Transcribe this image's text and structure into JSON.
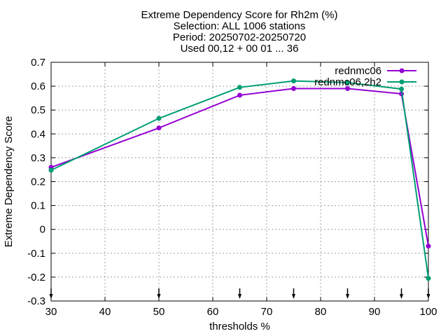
{
  "chart_data": {
    "type": "line",
    "title_lines": [
      "Extreme Dependency Score  for Rh2m (%)",
      "Selection: ALL   1006 stations",
      "Period: 20250702-20250720",
      "Used 00,12 + 00 01 ... 36"
    ],
    "xlabel": "thresholds %",
    "ylabel": "Extreme Dependency Score",
    "xlim": [
      30,
      100
    ],
    "ylim": [
      -0.3,
      0.7
    ],
    "xticks": [
      30,
      40,
      50,
      60,
      70,
      80,
      90,
      100
    ],
    "yticks": [
      -0.3,
      -0.2,
      -0.1,
      0,
      0.1,
      0.2,
      0.3,
      0.4,
      0.5,
      0.6,
      0.7
    ],
    "ytick_labels": [
      "-0.3",
      "-0.2",
      "-0.1",
      "0",
      "0.1",
      "0.2",
      "0.3",
      "0.4",
      "0.5",
      "0.6",
      "0.7"
    ],
    "grid": true,
    "legend_position": "top-right",
    "x": [
      30,
      50,
      65,
      75,
      85,
      95,
      100
    ],
    "series": [
      {
        "name": "rednmc06",
        "color": "#9400d3",
        "values": [
          0.26,
          0.425,
          0.562,
          0.59,
          0.59,
          0.568,
          -0.07
        ]
      },
      {
        "name": "rednmc06,2h2",
        "color": "#009e73",
        "values": [
          0.248,
          0.465,
          0.595,
          0.622,
          0.615,
          0.588,
          -0.205
        ]
      }
    ],
    "markers_at": [
      30,
      50,
      65,
      75,
      85,
      95,
      100
    ]
  }
}
